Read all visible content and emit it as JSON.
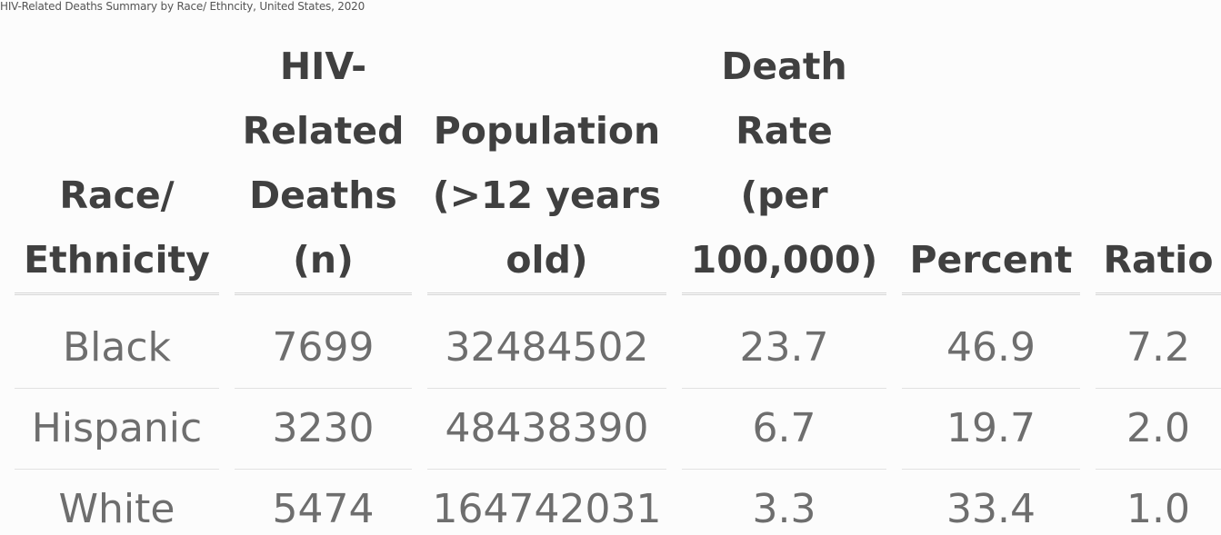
{
  "caption": "HIV-Related Deaths Summary by Race/ Ethncity, United States, 2020",
  "table": {
    "headers": [
      [
        "Race/",
        "Ethnicity"
      ],
      [
        "HIV-",
        "Related",
        "Deaths",
        "(n)"
      ],
      [
        "Population",
        "(>12 years",
        "old)"
      ],
      [
        "Death",
        "Rate",
        "(per",
        "100,000)"
      ],
      [
        "Percent"
      ],
      [
        "Ratio"
      ]
    ],
    "rows": [
      [
        "Black",
        "7699",
        "32484502",
        "23.7",
        "46.9",
        "7.2"
      ],
      [
        "Hispanic",
        "3230",
        "48438390",
        "6.7",
        "19.7",
        "2.0"
      ],
      [
        "White",
        "5474",
        "164742031",
        "3.3",
        "33.4",
        "1.0"
      ]
    ]
  }
}
